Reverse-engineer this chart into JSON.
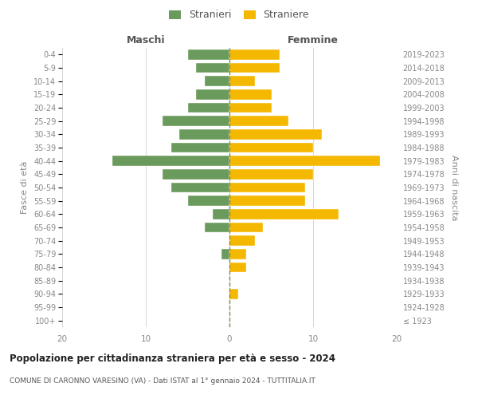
{
  "age_groups": [
    "100+",
    "95-99",
    "90-94",
    "85-89",
    "80-84",
    "75-79",
    "70-74",
    "65-69",
    "60-64",
    "55-59",
    "50-54",
    "45-49",
    "40-44",
    "35-39",
    "30-34",
    "25-29",
    "20-24",
    "15-19",
    "10-14",
    "5-9",
    "0-4"
  ],
  "birth_years": [
    "≤ 1923",
    "1924-1928",
    "1929-1933",
    "1934-1938",
    "1939-1943",
    "1944-1948",
    "1949-1953",
    "1954-1958",
    "1959-1963",
    "1964-1968",
    "1969-1973",
    "1974-1978",
    "1979-1983",
    "1984-1988",
    "1989-1993",
    "1994-1998",
    "1999-2003",
    "2004-2008",
    "2009-2013",
    "2014-2018",
    "2019-2023"
  ],
  "maschi": [
    0,
    0,
    0,
    0,
    0,
    1,
    0,
    3,
    2,
    5,
    7,
    8,
    14,
    7,
    6,
    8,
    5,
    4,
    3,
    4,
    5
  ],
  "femmine": [
    0,
    0,
    1,
    0,
    2,
    2,
    3,
    4,
    13,
    9,
    9,
    10,
    18,
    10,
    11,
    7,
    5,
    5,
    3,
    6,
    6
  ],
  "color_maschi": "#6a9a5c",
  "color_femmine": "#f5b800",
  "title": "Popolazione per cittadinanza straniera per età e sesso - 2024",
  "subtitle": "COMUNE DI CARONNO VARESINO (VA) - Dati ISTAT al 1° gennaio 2024 - TUTTITALIA.IT",
  "xlabel_left": "Maschi",
  "xlabel_right": "Femmine",
  "ylabel_left": "Fasce di età",
  "ylabel_right": "Anni di nascita",
  "xlim": 20,
  "legend_stranieri": "Stranieri",
  "legend_straniere": "Straniere",
  "bg_color": "#ffffff",
  "grid_color": "#d0d0d0"
}
